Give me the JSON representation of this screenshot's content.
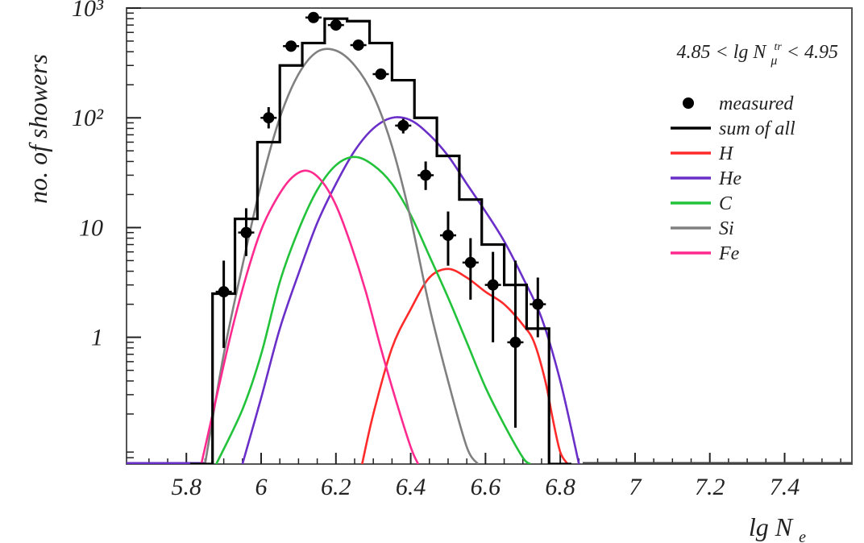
{
  "chart_data": {
    "type": "line",
    "xlabel": "lg N",
    "xlabel_sub": "e",
    "ylabel": "no. of showers",
    "annotation": {
      "prefix": "4.85 < lg N",
      "sup": "tr",
      "sub": "μ",
      "suffix": " < 4.95"
    },
    "y_scale": "log",
    "xlim": [
      5.64,
      7.58
    ],
    "ylim": [
      0.07,
      1000
    ],
    "x_ticks": [
      5.8,
      6.0,
      6.2,
      6.4,
      6.6,
      6.8,
      7.0,
      7.2,
      7.4
    ],
    "x_tick_labels": [
      "5.8",
      "6",
      "6.2",
      "6.4",
      "6.6",
      "6.8",
      "7",
      "7.2",
      "7.4"
    ],
    "y_ticks": [
      1,
      10,
      100,
      1000
    ],
    "y_tick_labels": [
      "1",
      "10",
      "10²",
      "10³"
    ],
    "legend_position": "top-right",
    "legend": [
      {
        "label": "measured",
        "kind": "marker",
        "color": "#000000"
      },
      {
        "label": "sum of all",
        "kind": "line",
        "color": "#000000"
      },
      {
        "label": "H",
        "kind": "line",
        "color": "#ff2a2a"
      },
      {
        "label": "He",
        "kind": "line",
        "color": "#6a2fc8"
      },
      {
        "label": "C",
        "kind": "line",
        "color": "#22c23a"
      },
      {
        "label": "Si",
        "kind": "line",
        "color": "#808080"
      },
      {
        "label": "Fe",
        "kind": "line",
        "color": "#ff2a8f"
      }
    ],
    "measured": {
      "name": "measured",
      "x": [
        5.9,
        5.96,
        6.02,
        6.08,
        6.14,
        6.2,
        6.26,
        6.32,
        6.38,
        6.44,
        6.5,
        6.56,
        6.62,
        6.68,
        6.74
      ],
      "y": [
        2.6,
        9.0,
        100,
        450,
        820,
        700,
        460,
        250,
        85,
        30,
        8.5,
        4.8,
        3.0,
        0.9,
        2.0
      ],
      "err_low": [
        0.8,
        5.5,
        80,
        400,
        760,
        640,
        420,
        225,
        72,
        22,
        4.5,
        2.2,
        0.9,
        0.15,
        1.0
      ],
      "err_high": [
        5.0,
        15,
        125,
        500,
        880,
        760,
        500,
        275,
        98,
        40,
        14,
        8.0,
        6.0,
        5.0,
        3.5
      ]
    },
    "sum_histogram": {
      "name": "sum of all",
      "bin_width": 0.06,
      "bin_centers": [
        5.84,
        5.9,
        5.96,
        6.02,
        6.08,
        6.14,
        6.2,
        6.26,
        6.32,
        6.38,
        6.44,
        6.5,
        6.56,
        6.62,
        6.68,
        6.74,
        6.8
      ],
      "values": [
        0.07,
        2.5,
        12,
        60,
        300,
        480,
        800,
        760,
        480,
        220,
        100,
        45,
        18,
        7,
        3,
        1.2,
        0.07
      ]
    },
    "series": [
      {
        "name": "H",
        "color": "#ff2a2a",
        "x": [
          6.27,
          6.3,
          6.35,
          6.4,
          6.45,
          6.5,
          6.55,
          6.6,
          6.65,
          6.7,
          6.73,
          6.76,
          6.78,
          6.8,
          6.82
        ],
        "y": [
          0.07,
          0.2,
          0.8,
          1.8,
          3.5,
          4.2,
          3.5,
          2.6,
          2.0,
          1.3,
          0.9,
          0.4,
          0.18,
          0.09,
          0.07
        ]
      },
      {
        "name": "He",
        "color": "#6a2fc8",
        "x": [
          5.95,
          6.0,
          6.05,
          6.1,
          6.15,
          6.2,
          6.25,
          6.3,
          6.35,
          6.4,
          6.45,
          6.5,
          6.55,
          6.6,
          6.65,
          6.7,
          6.75,
          6.8,
          6.85
        ],
        "y": [
          0.07,
          0.28,
          1.2,
          3.8,
          11,
          25,
          50,
          80,
          100,
          95,
          70,
          45,
          25,
          14,
          7.5,
          3.5,
          1.5,
          0.4,
          0.07
        ]
      },
      {
        "name": "C",
        "color": "#22c23a",
        "x": [
          5.88,
          5.95,
          6.0,
          6.05,
          6.1,
          6.15,
          6.2,
          6.25,
          6.3,
          6.35,
          6.4,
          6.45,
          6.5,
          6.55,
          6.6,
          6.65,
          6.7,
          6.72
        ],
        "y": [
          0.07,
          0.22,
          0.7,
          3.2,
          9.5,
          22,
          37,
          44,
          37,
          25,
          13,
          5.5,
          2.3,
          0.9,
          0.35,
          0.16,
          0.08,
          0.07
        ]
      },
      {
        "name": "Si",
        "color": "#808080",
        "x": [
          5.85,
          5.9,
          5.95,
          6.0,
          6.05,
          6.1,
          6.15,
          6.2,
          6.25,
          6.3,
          6.35,
          6.4,
          6.45,
          6.5,
          6.55,
          6.58
        ],
        "y": [
          0.07,
          0.7,
          4.5,
          25,
          100,
          250,
          400,
          410,
          300,
          160,
          55,
          12,
          1.9,
          0.4,
          0.1,
          0.07
        ]
      },
      {
        "name": "Fe",
        "color": "#ff2a8f",
        "x": [
          5.84,
          5.88,
          5.92,
          5.96,
          6.0,
          6.04,
          6.08,
          6.12,
          6.16,
          6.2,
          6.24,
          6.28,
          6.32,
          6.36,
          6.4,
          6.42
        ],
        "y": [
          0.07,
          0.28,
          1.1,
          3.6,
          9.5,
          18,
          28,
          33,
          27,
          16,
          7,
          2.6,
          0.8,
          0.27,
          0.1,
          0.07
        ]
      }
    ]
  }
}
